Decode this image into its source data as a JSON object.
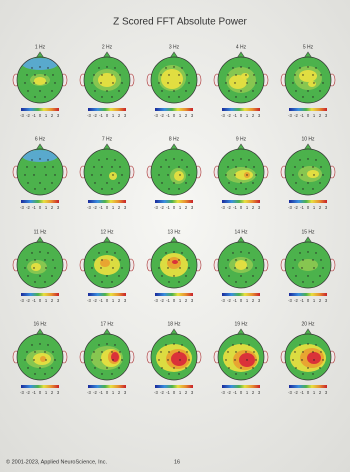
{
  "title": "Z Scored FFT Absolute Power",
  "maps": [
    "1 Hz",
    "2 Hz",
    "3 Hz",
    "4 Hz",
    "5 Hz",
    "6 Hz",
    "7 Hz",
    "8 Hz",
    "9 Hz",
    "10 Hz",
    "11 Hz",
    "12 Hz",
    "13 Hz",
    "14 Hz",
    "15 Hz",
    "16 Hz",
    "17 Hz",
    "18 Hz",
    "19 Hz",
    "20 Hz"
  ],
  "scale": [
    -3,
    -2,
    -1,
    0,
    1,
    2,
    3
  ],
  "footer": {
    "copyright": "© 2001-2023, Applied NeuroScience, Inc.",
    "page": "16"
  }
}
